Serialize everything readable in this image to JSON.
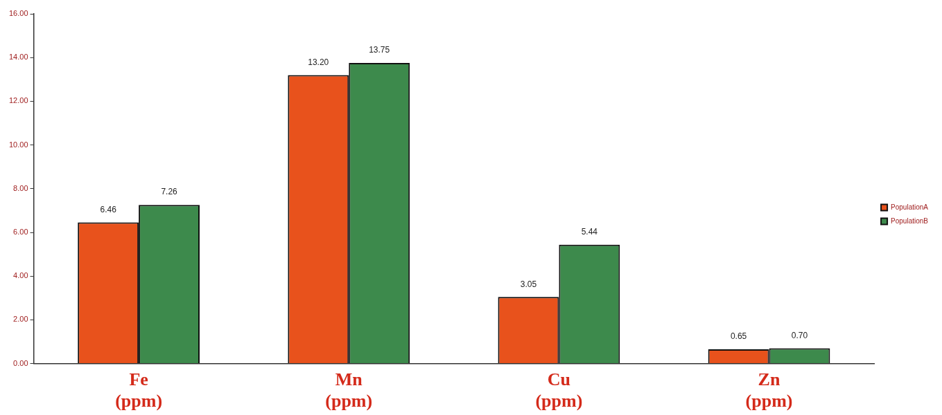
{
  "chart_data": {
    "type": "bar",
    "categories": [
      "Fe (ppm)",
      "Mn (ppm)",
      "Cu (ppm)",
      "Zn (ppm)"
    ],
    "series": [
      {
        "name": "PopulationA",
        "color": "#e8521c",
        "values": [
          6.46,
          13.2,
          3.05,
          0.65
        ],
        "value_labels": [
          "6.46",
          "13.20",
          "3.05",
          "0.65"
        ]
      },
      {
        "name": "PopulationB",
        "color": "#3d8a4c",
        "values": [
          7.26,
          13.75,
          5.44,
          0.7
        ],
        "value_labels": [
          "7.26",
          "13.75",
          "5.44",
          "0.70"
        ]
      }
    ],
    "ylim": [
      0,
      16
    ],
    "yticks": [
      {
        "value": 0,
        "label": "0.00"
      },
      {
        "value": 2,
        "label": "2.00"
      },
      {
        "value": 4,
        "label": "4.00"
      },
      {
        "value": 6,
        "label": "6.00"
      },
      {
        "value": 8,
        "label": "8.00"
      },
      {
        "value": 10,
        "label": "10.00"
      },
      {
        "value": 12,
        "label": "12.00"
      },
      {
        "value": 14,
        "label": "14.00"
      },
      {
        "value": 16,
        "label": "16.00"
      }
    ],
    "grid": false,
    "legend": "right"
  }
}
